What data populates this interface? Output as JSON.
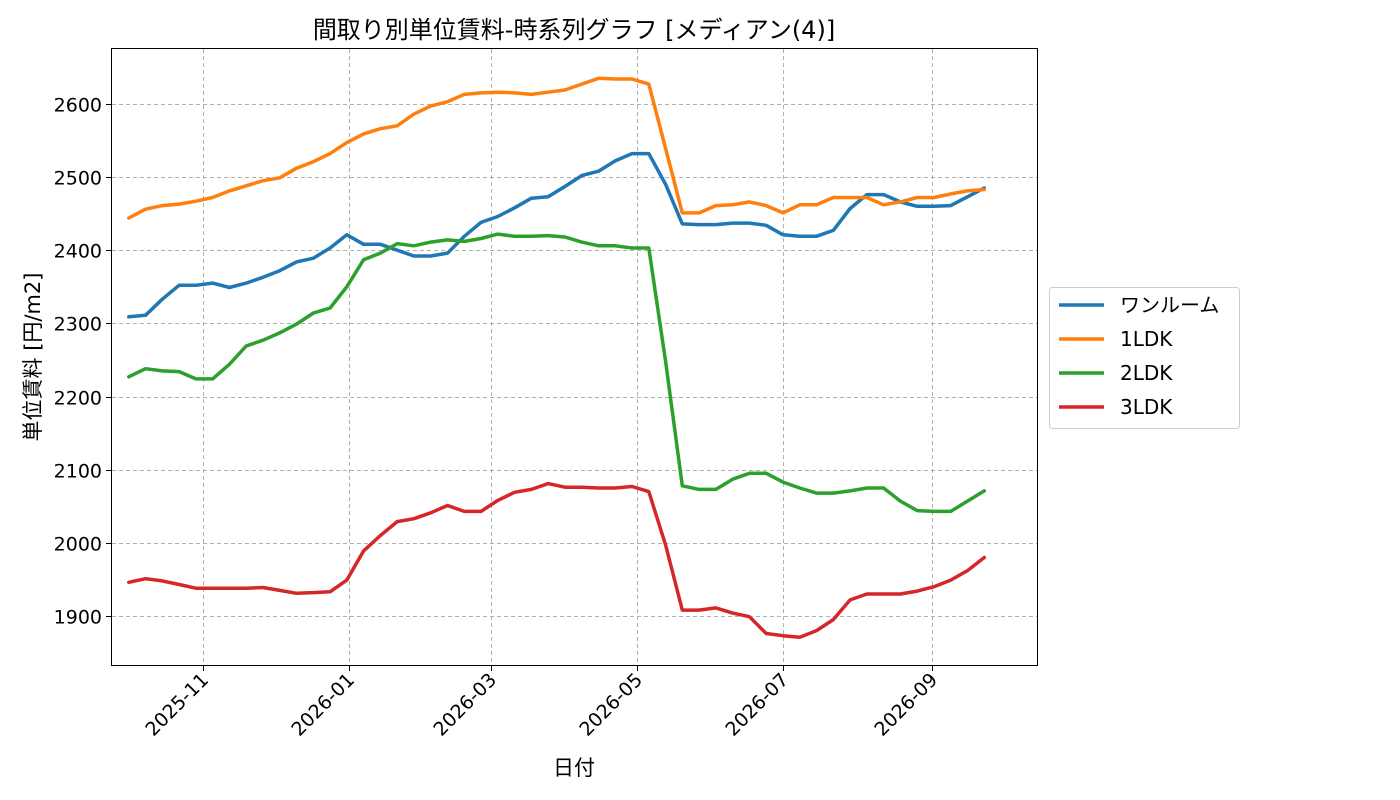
{
  "chart_data": {
    "type": "line",
    "title": "間取り別単位賃料-時系列グラフ [メディアン(4)]",
    "xlabel": "日付",
    "ylabel": "単位賃料 [円/m2]",
    "ylim": [
      1833,
      2675
    ],
    "xlim": [
      "2025-09-24",
      "2026-10-15"
    ],
    "grid": true,
    "legend_position": "center-right (outside plot)",
    "x_tick_labels": [
      "2025-11",
      "2026-01",
      "2026-03",
      "2026-05",
      "2026-07",
      "2026-09"
    ],
    "x_tick_dates": [
      "2025-11-01",
      "2026-01-01",
      "2026-03-01",
      "2026-05-01",
      "2026-07-01",
      "2026-09-01"
    ],
    "y_ticks": [
      1900,
      2000,
      2100,
      2200,
      2300,
      2400,
      2500,
      2600
    ],
    "x": [
      "2025-10-01",
      "2025-10-08",
      "2025-10-15",
      "2025-10-22",
      "2025-10-29",
      "2025-11-05",
      "2025-11-12",
      "2025-11-19",
      "2025-11-26",
      "2025-12-03",
      "2025-12-10",
      "2025-12-17",
      "2025-12-24",
      "2025-12-31",
      "2026-01-07",
      "2026-01-14",
      "2026-01-21",
      "2026-01-28",
      "2026-02-04",
      "2026-02-11",
      "2026-02-18",
      "2026-02-25",
      "2026-03-04",
      "2026-03-11",
      "2026-03-18",
      "2026-03-25",
      "2026-04-01",
      "2026-04-08",
      "2026-04-15",
      "2026-04-22",
      "2026-04-29",
      "2026-05-06",
      "2026-05-13",
      "2026-05-20",
      "2026-05-27",
      "2026-06-03",
      "2026-06-10",
      "2026-06-17",
      "2026-06-24",
      "2026-07-01",
      "2026-07-08",
      "2026-07-15",
      "2026-07-22",
      "2026-07-29",
      "2026-08-05",
      "2026-08-12",
      "2026-08-19",
      "2026-08-26",
      "2026-09-02",
      "2026-09-09",
      "2026-09-16",
      "2026-09-23"
    ],
    "series": [
      {
        "name": "ワンルーム",
        "color": "#1f77b4",
        "values": [
          2309,
          2311,
          2333,
          2352,
          2352,
          2355,
          2349,
          2355,
          2363,
          2372,
          2384,
          2389,
          2403,
          2421,
          2408,
          2408,
          2400,
          2392,
          2392,
          2396,
          2419,
          2438,
          2446,
          2458,
          2471,
          2473,
          2487,
          2502,
          2508,
          2522,
          2532,
          2532,
          2490,
          2436,
          2435,
          2435,
          2437,
          2437,
          2434,
          2421,
          2419,
          2419,
          2427,
          2457,
          2476,
          2476,
          2466,
          2460,
          2460,
          2461,
          2473,
          2485
        ]
      },
      {
        "name": "1LDK",
        "color": "#ff7f0e",
        "values": [
          2444,
          2456,
          2461,
          2463,
          2467,
          2472,
          2481,
          2488,
          2495,
          2499,
          2512,
          2521,
          2532,
          2547,
          2559,
          2566,
          2570,
          2586,
          2597,
          2603,
          2613,
          2615,
          2616,
          2615,
          2613,
          2616,
          2619,
          2627,
          2635,
          2634,
          2634,
          2627,
          2539,
          2451,
          2451,
          2461,
          2462,
          2466,
          2461,
          2451,
          2462,
          2462,
          2472,
          2472,
          2472,
          2462,
          2466,
          2472,
          2472,
          2477,
          2481,
          2483
        ]
      },
      {
        "name": "2LDK",
        "color": "#2ca02c",
        "values": [
          2227,
          2238,
          2235,
          2234,
          2224,
          2224,
          2244,
          2269,
          2277,
          2287,
          2299,
          2314,
          2321,
          2350,
          2387,
          2396,
          2409,
          2406,
          2411,
          2414,
          2412,
          2416,
          2422,
          2419,
          2419,
          2420,
          2418,
          2411,
          2406,
          2406,
          2403,
          2403,
          2248,
          2078,
          2073,
          2073,
          2087,
          2095,
          2095,
          2083,
          2075,
          2068,
          2068,
          2071,
          2075,
          2075,
          2057,
          2044,
          2043,
          2043,
          2057,
          2071
        ]
      },
      {
        "name": "3LDK",
        "color": "#d62728",
        "values": [
          1946,
          1951,
          1948,
          1943,
          1938,
          1938,
          1938,
          1938,
          1939,
          1935,
          1931,
          1932,
          1933,
          1949,
          1989,
          2010,
          2029,
          2033,
          2041,
          2051,
          2043,
          2043,
          2058,
          2069,
          2073,
          2081,
          2076,
          2076,
          2075,
          2075,
          2077,
          2070,
          1997,
          1908,
          1908,
          1911,
          1904,
          1899,
          1876,
          1873,
          1871,
          1880,
          1895,
          1922,
          1930,
          1930,
          1930,
          1934,
          1940,
          1949,
          1962,
          1980
        ]
      }
    ]
  }
}
